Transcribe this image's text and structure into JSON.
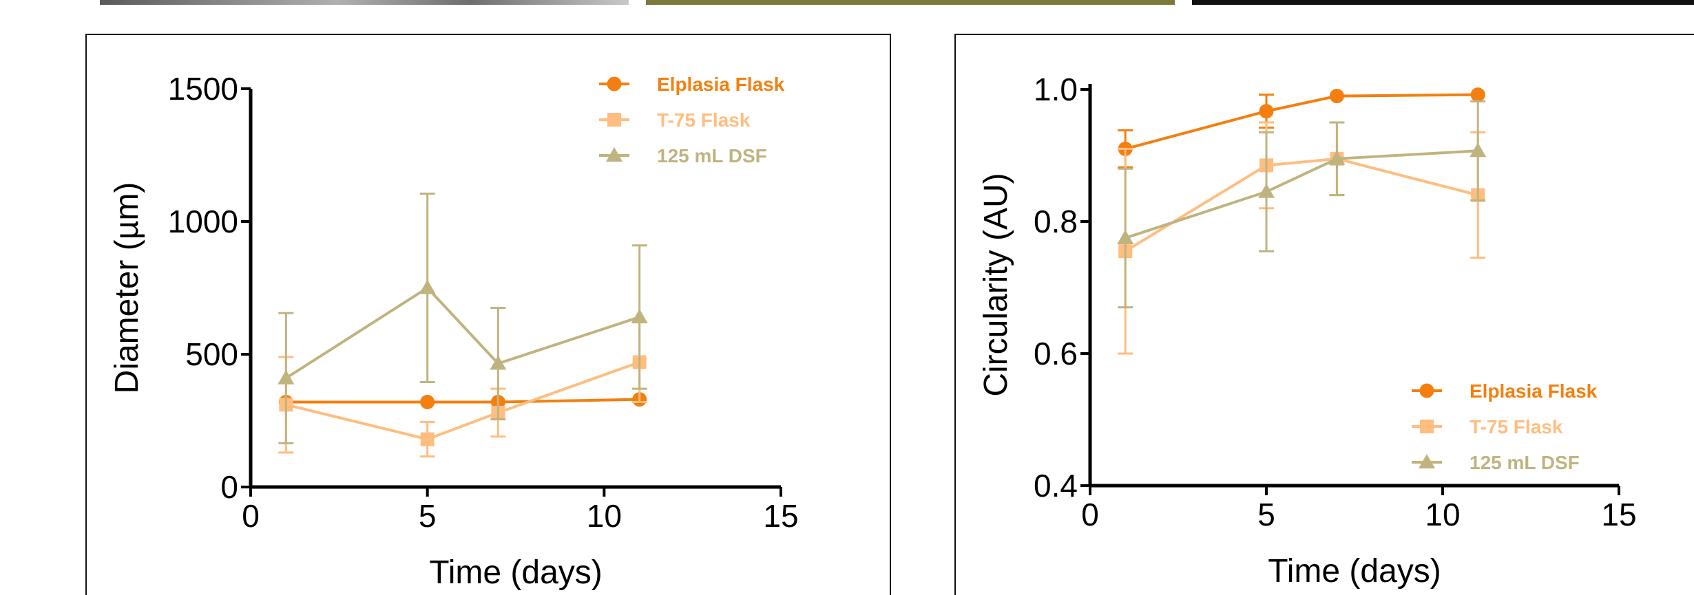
{
  "top_strips": [
    {
      "name": "image-strip-grayscale",
      "color": "#8a8a8a"
    },
    {
      "name": "image-strip-olive",
      "color": "#7a7a3c"
    },
    {
      "name": "image-strip-dark",
      "color": "#111111"
    }
  ],
  "chart_data": [
    {
      "type": "line",
      "title": "",
      "xlabel": "Time (days)",
      "ylabel": "Diameter (µm)",
      "xlim": [
        0,
        15
      ],
      "ylim": [
        0,
        1500
      ],
      "xticks": [
        0,
        5,
        10,
        15
      ],
      "yticks": [
        0,
        500,
        1000,
        1500
      ],
      "grid": false,
      "legend_position": "top-right",
      "series": [
        {
          "name": "Elplasia Flask",
          "marker": "circle",
          "color": "#F47F0E",
          "points": [
            {
              "x": 1,
              "y": 320,
              "err": 0
            },
            {
              "x": 5,
              "y": 320,
              "err": 0
            },
            {
              "x": 7,
              "y": 320,
              "err": 0
            },
            {
              "x": 11,
              "y": 330,
              "err": 0
            }
          ]
        },
        {
          "name": "T-75 Flask",
          "marker": "square",
          "color": "#FFBD7F",
          "points": [
            {
              "x": 1,
              "y": 310,
              "err": 180
            },
            {
              "x": 5,
              "y": 180,
              "err": 65
            },
            {
              "x": 7,
              "y": 280,
              "err": 90
            },
            {
              "x": 11,
              "y": 470,
              "err": 150
            }
          ]
        },
        {
          "name": "125 mL DSF",
          "marker": "triangle",
          "color": "#BFB47F",
          "points": [
            {
              "x": 1,
              "y": 410,
              "err": 245
            },
            {
              "x": 5,
              "y": 750,
              "err": 355
            },
            {
              "x": 7,
              "y": 465,
              "err": 210
            },
            {
              "x": 11,
              "y": 640,
              "err": 270
            }
          ]
        }
      ]
    },
    {
      "type": "line",
      "title": "",
      "xlabel": "Time (days)",
      "ylabel": "Circularity (AU)",
      "xlim": [
        0,
        15
      ],
      "ylim": [
        0.4,
        1.05
      ],
      "xticks": [
        0,
        5,
        10,
        15
      ],
      "yticks": [
        0.4,
        0.6,
        0.8,
        1.0
      ],
      "ytick_labels": [
        "0.4",
        "0.6",
        "0.8",
        "1.0"
      ],
      "grid": false,
      "legend_position": "bottom-right",
      "series": [
        {
          "name": "Elplasia Flask",
          "marker": "circle",
          "color": "#F47F0E",
          "points": [
            {
              "x": 1,
              "y": 0.91,
              "err": 0.028
            },
            {
              "x": 5,
              "y": 0.967,
              "err": 0.025
            },
            {
              "x": 7,
              "y": 0.99,
              "err": 0
            },
            {
              "x": 11,
              "y": 0.992,
              "err": 0
            }
          ]
        },
        {
          "name": "T-75 Flask",
          "marker": "square",
          "color": "#FFBD7F",
          "points": [
            {
              "x": 1,
              "y": 0.755,
              "err": 0.155
            },
            {
              "x": 5,
              "y": 0.885,
              "err": 0.065
            },
            {
              "x": 7,
              "y": 0.895,
              "err": 0.055
            },
            {
              "x": 11,
              "y": 0.84,
              "err": 0.095
            }
          ]
        },
        {
          "name": "125 mL DSF",
          "marker": "triangle",
          "color": "#BFB47F",
          "points": [
            {
              "x": 1,
              "y": 0.775,
              "err": 0.105
            },
            {
              "x": 5,
              "y": 0.845,
              "err": 0.09
            },
            {
              "x": 7,
              "y": 0.895,
              "err": 0.055
            },
            {
              "x": 11,
              "y": 0.907,
              "err": 0.075
            }
          ]
        }
      ]
    }
  ]
}
